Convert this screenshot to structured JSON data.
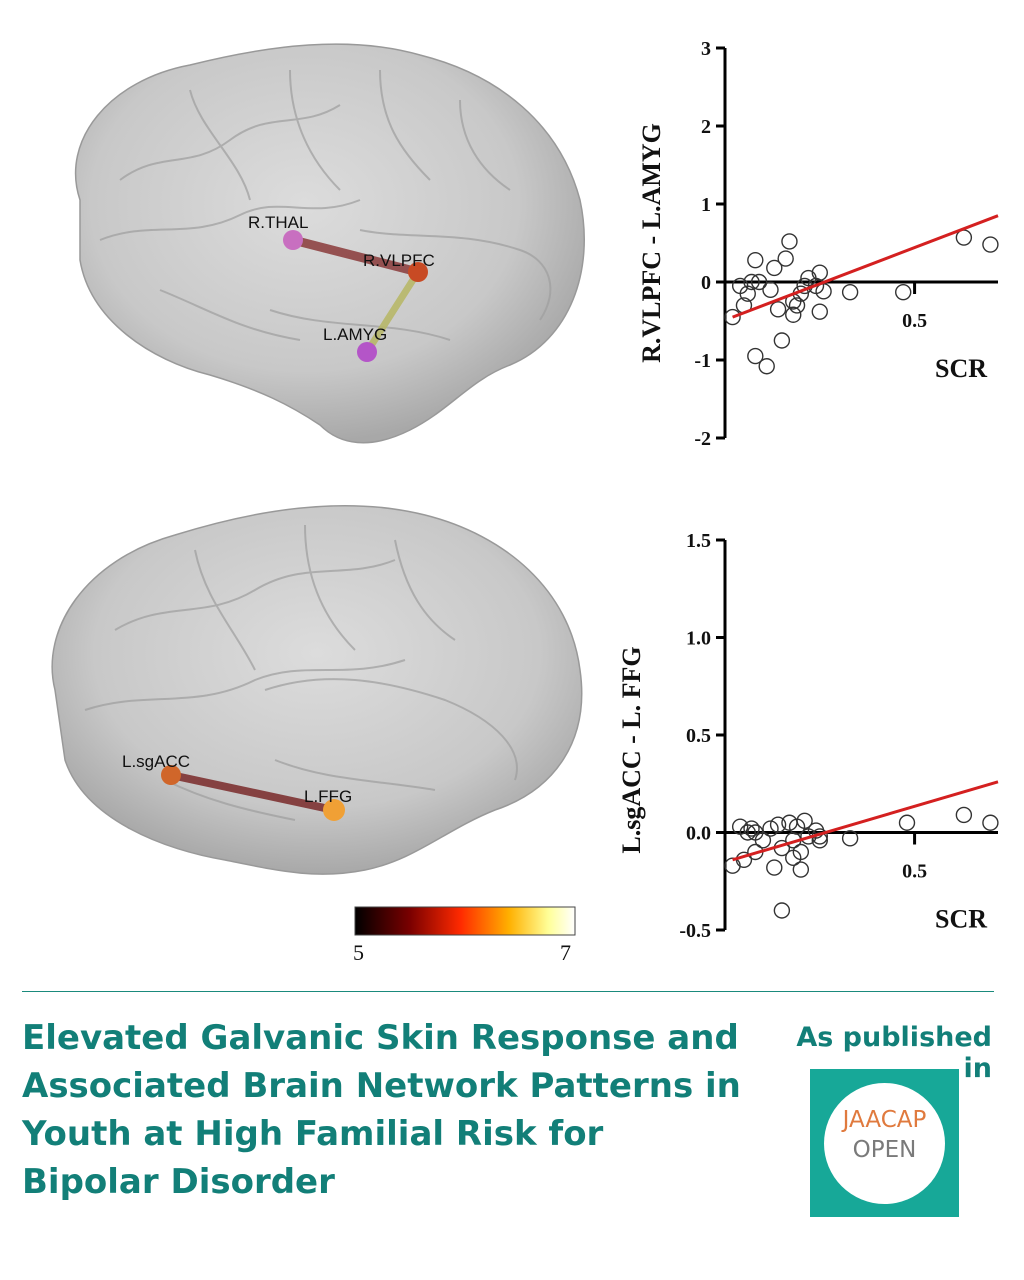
{
  "headline": "Elevated Galvanic Skin Response and Associated Brain Network Patterns in Youth at High Familial Risk for Bipolar Disorder",
  "published_label": "As published in",
  "logo": {
    "line1": "JAACAP",
    "line2": "OPEN"
  },
  "brain_top": {
    "nodes": [
      "R.THAL",
      "R.VLPFC",
      "L.AMYG"
    ],
    "edges": [
      {
        "from": "R.THAL",
        "to": "R.VLPFC",
        "color": "#8a3a3a"
      },
      {
        "from": "R.VLPFC",
        "to": "L.AMYG",
        "color": "#b8b86a"
      }
    ],
    "node_colors": {
      "R.THAL": "#c86fc0",
      "R.VLPFC": "#c84a24",
      "L.AMYG": "#b455c8"
    }
  },
  "brain_bottom": {
    "nodes": [
      "L.sgACC",
      "L.FFG"
    ],
    "edges": [
      {
        "from": "L.sgACC",
        "to": "L.FFG",
        "color": "#7a2a2a"
      }
    ],
    "node_colors": {
      "L.sgACC": "#d0662a",
      "L.FFG": "#f0a035"
    }
  },
  "colorbar": {
    "min_label": "5",
    "max_label": "7",
    "colors": [
      "#000000",
      "#7a0000",
      "#ff2a00",
      "#ffb000",
      "#ffff99",
      "#ffffff"
    ]
  },
  "chart_data": [
    {
      "type": "scatter",
      "title": "",
      "ylabel": "R.VLPFC - L.AMYG",
      "xlabel": "SCR",
      "ylim": [
        -2,
        3
      ],
      "xlim": [
        0,
        0.72
      ],
      "yticks": [
        "-2",
        "-1",
        "0",
        "1",
        "2",
        "3"
      ],
      "xticks": [
        "0.5"
      ],
      "fit_line": {
        "x": [
          0.02,
          0.72
        ],
        "y": [
          -0.45,
          0.85
        ],
        "color": "#d42020"
      },
      "points": [
        {
          "x": 0.02,
          "y": -0.45
        },
        {
          "x": 0.04,
          "y": -0.05
        },
        {
          "x": 0.05,
          "y": -0.3
        },
        {
          "x": 0.06,
          "y": -0.15
        },
        {
          "x": 0.07,
          "y": 0.0
        },
        {
          "x": 0.08,
          "y": 0.28
        },
        {
          "x": 0.09,
          "y": 0.0
        },
        {
          "x": 0.08,
          "y": -0.95
        },
        {
          "x": 0.11,
          "y": -1.08
        },
        {
          "x": 0.12,
          "y": -0.1
        },
        {
          "x": 0.13,
          "y": 0.18
        },
        {
          "x": 0.14,
          "y": -0.35
        },
        {
          "x": 0.15,
          "y": -0.75
        },
        {
          "x": 0.16,
          "y": 0.3
        },
        {
          "x": 0.17,
          "y": 0.52
        },
        {
          "x": 0.18,
          "y": -0.25
        },
        {
          "x": 0.18,
          "y": -0.42
        },
        {
          "x": 0.19,
          "y": -0.3
        },
        {
          "x": 0.2,
          "y": -0.15
        },
        {
          "x": 0.21,
          "y": -0.05
        },
        {
          "x": 0.22,
          "y": 0.05
        },
        {
          "x": 0.24,
          "y": -0.05
        },
        {
          "x": 0.25,
          "y": -0.38
        },
        {
          "x": 0.25,
          "y": 0.12
        },
        {
          "x": 0.26,
          "y": -0.12
        },
        {
          "x": 0.33,
          "y": -0.13
        },
        {
          "x": 0.47,
          "y": -0.13
        },
        {
          "x": 0.63,
          "y": 0.57
        },
        {
          "x": 0.7,
          "y": 0.48
        }
      ]
    },
    {
      "type": "scatter",
      "title": "",
      "ylabel": "L.sgACC - L. FFG",
      "xlabel": "SCR",
      "ylim": [
        -0.5,
        1.5
      ],
      "xlim": [
        0,
        0.72
      ],
      "yticks": [
        "-0.5",
        "0.0",
        "0.5",
        "1.0",
        "1.5"
      ],
      "xticks": [
        "0.5"
      ],
      "fit_line": {
        "x": [
          0.02,
          0.72
        ],
        "y": [
          -0.14,
          0.26
        ],
        "color": "#d42020"
      },
      "points": [
        {
          "x": 0.02,
          "y": -0.17
        },
        {
          "x": 0.04,
          "y": 0.03
        },
        {
          "x": 0.05,
          "y": -0.14
        },
        {
          "x": 0.06,
          "y": 0.0
        },
        {
          "x": 0.07,
          "y": 0.02
        },
        {
          "x": 0.08,
          "y": -0.1
        },
        {
          "x": 0.08,
          "y": 0.0
        },
        {
          "x": 0.1,
          "y": -0.04
        },
        {
          "x": 0.12,
          "y": 0.02
        },
        {
          "x": 0.13,
          "y": -0.18
        },
        {
          "x": 0.14,
          "y": 0.04
        },
        {
          "x": 0.15,
          "y": -0.08
        },
        {
          "x": 0.15,
          "y": -0.4
        },
        {
          "x": 0.17,
          "y": 0.05
        },
        {
          "x": 0.18,
          "y": -0.13
        },
        {
          "x": 0.18,
          "y": -0.04
        },
        {
          "x": 0.19,
          "y": 0.03
        },
        {
          "x": 0.2,
          "y": -0.1
        },
        {
          "x": 0.2,
          "y": -0.19
        },
        {
          "x": 0.21,
          "y": 0.06
        },
        {
          "x": 0.22,
          "y": -0.02
        },
        {
          "x": 0.24,
          "y": 0.01
        },
        {
          "x": 0.25,
          "y": -0.02
        },
        {
          "x": 0.25,
          "y": -0.04
        },
        {
          "x": 0.33,
          "y": -0.03
        },
        {
          "x": 0.48,
          "y": 0.05
        },
        {
          "x": 0.63,
          "y": 0.09
        },
        {
          "x": 0.7,
          "y": 0.05
        }
      ]
    }
  ]
}
